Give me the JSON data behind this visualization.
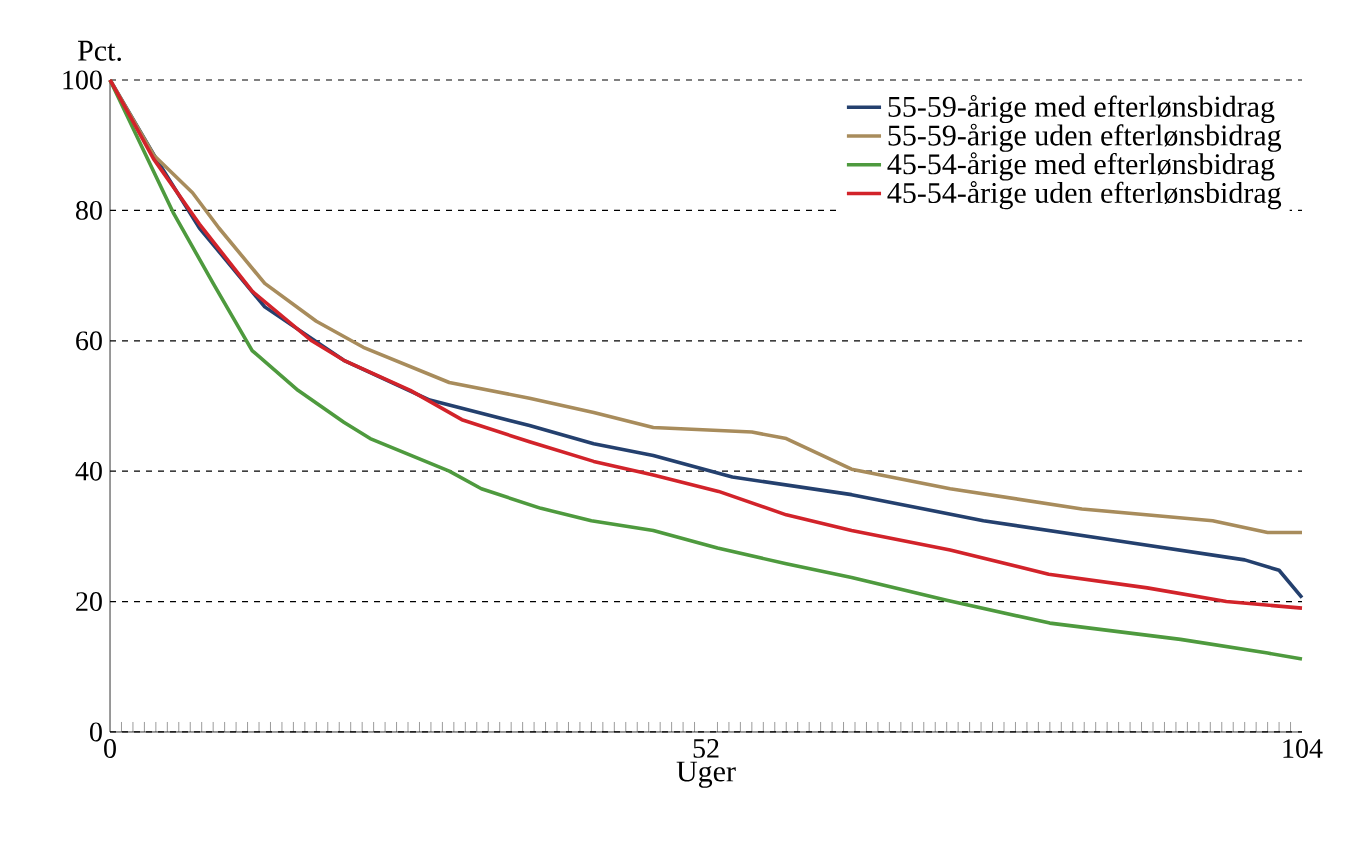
{
  "chart_data": {
    "type": "line",
    "ylabel": "Pct.",
    "xlabel": "Uger",
    "xlim": [
      0,
      104
    ],
    "xticks": [
      0,
      52,
      104
    ],
    "ylim": [
      0,
      100
    ],
    "yticks": [
      0,
      20,
      40,
      60,
      80,
      100
    ],
    "grid": "y",
    "legend": "top right",
    "line_style": "solid",
    "marker": "none",
    "series": [
      {
        "name": "55-59-årige med efterlønsbidrag",
        "color": "#24406e",
        "x": [
          0,
          4,
          7.8,
          13.5,
          20.4,
          27.9,
          36.6,
          42.2,
          47.4,
          54.3,
          64.7,
          76.2,
          87.6,
          99,
          102,
          104
        ],
        "values": [
          100,
          88,
          77.3,
          65.2,
          57,
          50.9,
          47,
          44.2,
          42.4,
          39.1,
          36.4,
          32.4,
          29.4,
          26.4,
          24.8,
          20.6
        ]
      },
      {
        "name": "55-59-årige uden efterlønsbidrag",
        "color": "#a88c5c",
        "x": [
          0,
          3.8,
          7.2,
          9.5,
          13.5,
          18,
          22.1,
          29.6,
          36.6,
          42.2,
          47.4,
          56,
          59,
          64.7,
          73.3,
          84.8,
          96.2,
          101,
          104
        ],
        "values": [
          100,
          88.5,
          82.7,
          77.3,
          68.8,
          63,
          59,
          53.6,
          51.2,
          49,
          46.7,
          46,
          45,
          40.3,
          37.3,
          34.2,
          32.4,
          30.6,
          30.6
        ]
      },
      {
        "name": "45-54-årige med efterlønsbidrag",
        "color": "#4e9a3e",
        "x": [
          0,
          5.5,
          9,
          12.4,
          16.4,
          20.4,
          22.7,
          29.6,
          32.4,
          37.6,
          42,
          47.4,
          53,
          59,
          64.7,
          73,
          82,
          93.4,
          101,
          104
        ],
        "values": [
          100,
          79.7,
          68.8,
          58.5,
          52.4,
          47.5,
          45,
          40,
          37.3,
          34.3,
          32.4,
          30.9,
          28.2,
          25.8,
          23.7,
          20.2,
          16.7,
          14.2,
          12.1,
          11.2
        ]
      },
      {
        "name": "45-54-årige uden efterlønsbidrag",
        "color": "#d2232a",
        "x": [
          0,
          3.8,
          7.8,
          12.4,
          17.6,
          20.4,
          26.2,
          30.7,
          36.6,
          42.2,
          47.4,
          53.1,
          59,
          64.7,
          73.3,
          81.9,
          90.5,
          97.4,
          104
        ],
        "values": [
          100,
          87.9,
          77.9,
          67.6,
          60,
          57,
          52.4,
          47.9,
          44.5,
          41.5,
          39.4,
          36.9,
          33.3,
          30.9,
          27.9,
          24.2,
          22.1,
          20,
          19
        ]
      }
    ]
  }
}
